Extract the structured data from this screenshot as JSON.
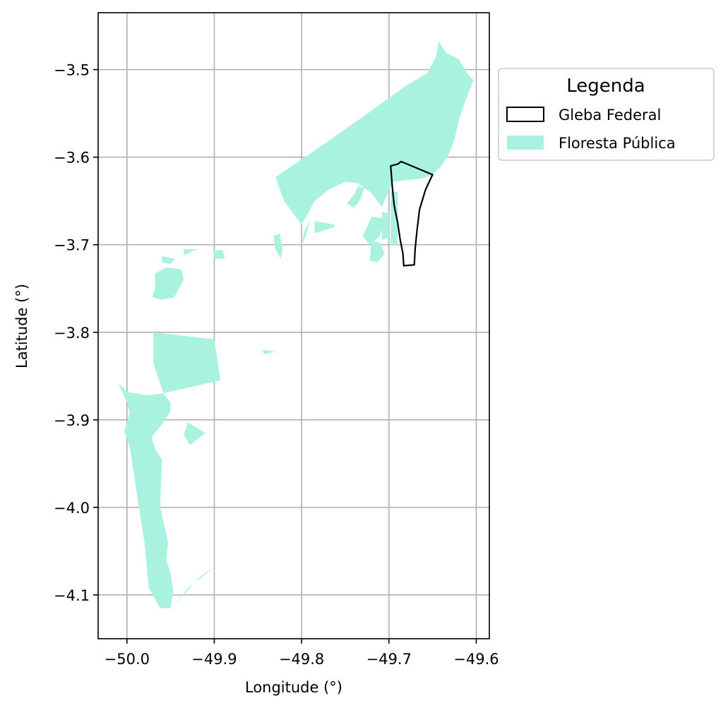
{
  "chart_data": {
    "type": "map",
    "xlabel": "Longitude (°)",
    "ylabel": "Latitude (°)",
    "xlim": [
      -50.033,
      -49.585
    ],
    "ylim": [
      -4.15,
      -3.435
    ],
    "xticks": [
      -50.0,
      -49.9,
      -49.8,
      -49.7,
      -49.6
    ],
    "xtick_labels": [
      "−50.0",
      "−49.9",
      "−49.8",
      "−49.7",
      "−49.6"
    ],
    "yticks": [
      -3.5,
      -3.6,
      -3.7,
      -3.8,
      -3.9,
      -4.0,
      -4.1
    ],
    "ytick_labels": [
      "−3.5",
      "−3.6",
      "−3.7",
      "−3.8",
      "−3.9",
      "−4.0",
      "−4.1"
    ],
    "grid": true,
    "legend": {
      "title": "Legenda",
      "placement": "outside-upper-right",
      "entries": [
        {
          "label": "Gleba Federal",
          "style": "outline",
          "color": "#000000"
        },
        {
          "label": "Floresta Pública",
          "style": "fill",
          "color": "#a8f2df"
        }
      ]
    },
    "layers": [
      {
        "name": "Floresta Pública",
        "fill": "#a8f2df",
        "polygons": [
          [
            [
              -49.83,
              -3.623
            ],
            [
              -49.78,
              -3.589
            ],
            [
              -49.73,
              -3.554
            ],
            [
              -49.68,
              -3.518
            ],
            [
              -49.656,
              -3.504
            ],
            [
              -49.646,
              -3.485
            ],
            [
              -49.643,
              -3.467
            ],
            [
              -49.64,
              -3.473
            ],
            [
              -49.634,
              -3.481
            ],
            [
              -49.62,
              -3.488
            ],
            [
              -49.61,
              -3.505
            ],
            [
              -49.603,
              -3.512
            ],
            [
              -49.607,
              -3.522
            ],
            [
              -49.613,
              -3.537
            ],
            [
              -49.62,
              -3.558
            ],
            [
              -49.625,
              -3.58
            ],
            [
              -49.63,
              -3.594
            ],
            [
              -49.64,
              -3.61
            ],
            [
              -49.65,
              -3.62
            ],
            [
              -49.66,
              -3.624
            ],
            [
              -49.695,
              -3.628
            ],
            [
              -49.7,
              -3.638
            ],
            [
              -49.708,
              -3.657
            ],
            [
              -49.72,
              -3.641
            ],
            [
              -49.735,
              -3.63
            ],
            [
              -49.75,
              -3.628
            ],
            [
              -49.77,
              -3.638
            ],
            [
              -49.785,
              -3.65
            ],
            [
              -49.8,
              -3.677
            ],
            [
              -49.82,
              -3.65
            ]
          ],
          [
            [
              -49.728,
              -3.635
            ],
            [
              -49.735,
              -3.633
            ],
            [
              -49.74,
              -3.643
            ],
            [
              -49.748,
              -3.653
            ],
            [
              -49.74,
              -3.658
            ],
            [
              -49.732,
              -3.647
            ]
          ],
          [
            [
              -49.698,
              -3.639
            ],
            [
              -49.69,
              -3.64
            ],
            [
              -49.69,
              -3.7
            ],
            [
              -49.698,
              -3.7
            ]
          ],
          [
            [
              -49.708,
              -3.662
            ],
            [
              -49.7,
              -3.664
            ],
            [
              -49.7,
              -3.691
            ],
            [
              -49.708,
              -3.695
            ]
          ],
          [
            [
              -49.72,
              -3.668
            ],
            [
              -49.705,
              -3.67
            ],
            [
              -49.71,
              -3.69
            ],
            [
              -49.722,
              -3.7
            ],
            [
              -49.73,
              -3.69
            ]
          ],
          [
            [
              -49.72,
              -3.695
            ],
            [
              -49.71,
              -3.698
            ],
            [
              -49.705,
              -3.71
            ],
            [
              -49.713,
              -3.72
            ],
            [
              -49.722,
              -3.718
            ]
          ],
          [
            [
              -49.785,
              -3.673
            ],
            [
              -49.762,
              -3.677
            ],
            [
              -49.763,
              -3.68
            ],
            [
              -49.785,
              -3.687
            ]
          ],
          [
            [
              -49.79,
              -3.672
            ],
            [
              -49.795,
              -3.69
            ],
            [
              -49.8,
              -3.7
            ],
            [
              -49.797,
              -3.685
            ]
          ],
          [
            [
              -49.832,
              -3.69
            ],
            [
              -49.825,
              -3.687
            ],
            [
              -49.822,
              -3.705
            ],
            [
              -49.824,
              -3.716
            ],
            [
              -49.83,
              -3.705
            ]
          ],
          [
            [
              -49.902,
              -3.707
            ],
            [
              -49.89,
              -3.706
            ],
            [
              -49.888,
              -3.716
            ],
            [
              -49.9,
              -3.716
            ]
          ],
          [
            [
              -49.935,
              -3.705
            ],
            [
              -49.92,
              -3.705
            ],
            [
              -49.935,
              -3.712
            ]
          ],
          [
            [
              -49.96,
              -3.713
            ],
            [
              -49.945,
              -3.716
            ],
            [
              -49.95,
              -3.722
            ],
            [
              -49.96,
              -3.72
            ]
          ],
          [
            [
              -49.968,
              -3.733
            ],
            [
              -49.955,
              -3.726
            ],
            [
              -49.938,
              -3.728
            ],
            [
              -49.935,
              -3.74
            ],
            [
              -49.946,
              -3.76
            ],
            [
              -49.96,
              -3.763
            ],
            [
              -49.971,
              -3.76
            ],
            [
              -49.968,
              -3.75
            ]
          ],
          [
            [
              -49.97,
              -3.8
            ],
            [
              -49.9,
              -3.808
            ],
            [
              -49.893,
              -3.855
            ],
            [
              -49.96,
              -3.87
            ],
            [
              -49.977,
              -3.872
            ],
            [
              -50.0,
              -3.868
            ],
            [
              -50.01,
              -3.858
            ],
            [
              -50.0,
              -3.88
            ],
            [
              -49.997,
              -3.892
            ],
            [
              -50.003,
              -3.913
            ],
            [
              -49.997,
              -3.93
            ],
            [
              -49.98,
              -4.04
            ],
            [
              -49.975,
              -4.092
            ],
            [
              -49.962,
              -4.115
            ],
            [
              -49.95,
              -4.115
            ],
            [
              -49.947,
              -4.095
            ],
            [
              -49.95,
              -4.075
            ],
            [
              -49.955,
              -4.06
            ],
            [
              -49.953,
              -4.04
            ],
            [
              -49.962,
              -4.0
            ],
            [
              -49.96,
              -3.945
            ],
            [
              -49.967,
              -3.935
            ],
            [
              -49.972,
              -3.92
            ],
            [
              -49.96,
              -3.905
            ],
            [
              -49.95,
              -3.89
            ],
            [
              -49.95,
              -3.88
            ],
            [
              -49.958,
              -3.87
            ],
            [
              -49.97,
              -3.835
            ]
          ],
          [
            [
              -49.93,
              -3.903
            ],
            [
              -49.91,
              -3.915
            ],
            [
              -49.928,
              -3.929
            ],
            [
              -49.935,
              -3.917
            ]
          ],
          [
            [
              -49.9,
              -4.068
            ],
            [
              -49.93,
              -4.092
            ],
            [
              -49.945,
              -4.11
            ],
            [
              -49.915,
              -4.078
            ]
          ],
          [
            [
              -49.83,
              -3.822
            ],
            [
              -49.845,
              -3.82
            ],
            [
              -49.843,
              -3.825
            ]
          ]
        ]
      },
      {
        "name": "Gleba Federal",
        "stroke": "#000000",
        "polygons": [
          [
            [
              -49.686,
              -3.605
            ],
            [
              -49.65,
              -3.62
            ],
            [
              -49.658,
              -3.637
            ],
            [
              -49.665,
              -3.66
            ],
            [
              -49.668,
              -3.685
            ],
            [
              -49.67,
              -3.705
            ],
            [
              -49.671,
              -3.723
            ],
            [
              -49.683,
              -3.724
            ],
            [
              -49.684,
              -3.71
            ],
            [
              -49.687,
              -3.695
            ],
            [
              -49.69,
              -3.675
            ],
            [
              -49.694,
              -3.655
            ],
            [
              -49.696,
              -3.635
            ],
            [
              -49.698,
              -3.61
            ],
            [
              -49.69,
              -3.608
            ]
          ]
        ]
      }
    ]
  }
}
